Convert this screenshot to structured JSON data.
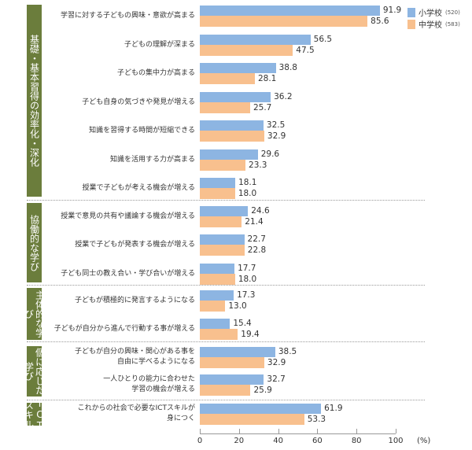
{
  "chart_data": {
    "type": "bar",
    "orientation": "horizontal",
    "xlim": [
      0,
      100
    ],
    "xticks": [
      "0",
      "20",
      "40",
      "60",
      "80",
      "100"
    ],
    "xunit": "(%)",
    "colors": {
      "小学校": "#8db5e2",
      "中学校": "#f8c08e",
      "group": "#6b7d3c"
    },
    "legend": [
      {
        "name": "小学校",
        "n": "(520)"
      },
      {
        "name": "中学校",
        "n": "(583)"
      }
    ],
    "groups": [
      {
        "label": "基礎・基本習得の効率化・深化",
        "items": [
          0,
          1,
          2,
          3,
          4,
          5,
          6
        ]
      },
      {
        "label": "協働的な学び",
        "items": [
          7,
          8,
          9
        ]
      },
      {
        "label": "主体的な学び",
        "items": [
          10,
          11
        ]
      },
      {
        "label": "個に応じた学び",
        "items": [
          12,
          13
        ]
      },
      {
        "label": "ICTスキル",
        "items": [
          14
        ]
      }
    ],
    "categories": [
      [
        "学習に対する子どもの興味・意欲が高まる"
      ],
      [
        "子どもの理解が深まる"
      ],
      [
        "子どもの集中力が高まる"
      ],
      [
        "子ども自身の気づきや発見が増える"
      ],
      [
        "知識を習得する時間が短縮できる"
      ],
      [
        "知識を活用する力が高まる"
      ],
      [
        "授業で子どもが考える機会が増える"
      ],
      [
        "授業で意見の共有や議論する機会が増える"
      ],
      [
        "授業で子どもが発表する機会が増える"
      ],
      [
        "子ども同士の教え合い・学び合いが増える"
      ],
      [
        "子どもが積極的に発言するようになる"
      ],
      [
        "子どもが自分から進んで行動する事が増える"
      ],
      [
        "子どもが自分の興味・関心がある事を",
        "自由に学べるようになる"
      ],
      [
        "一人ひとりの能力に合わせた",
        "学習の機会が増える"
      ],
      [
        "これからの社会で必要なICTスキルが",
        "身につく"
      ]
    ],
    "series": [
      {
        "name": "小学校",
        "values": [
          91.9,
          56.5,
          38.8,
          36.2,
          32.5,
          29.6,
          18.1,
          24.6,
          22.7,
          17.7,
          17.3,
          15.4,
          38.5,
          32.7,
          61.9
        ]
      },
      {
        "name": "中学校",
        "values": [
          85.6,
          47.5,
          28.1,
          25.7,
          32.9,
          23.3,
          18.0,
          21.4,
          22.8,
          18.0,
          13.0,
          19.4,
          32.9,
          25.9,
          53.3
        ]
      }
    ]
  }
}
